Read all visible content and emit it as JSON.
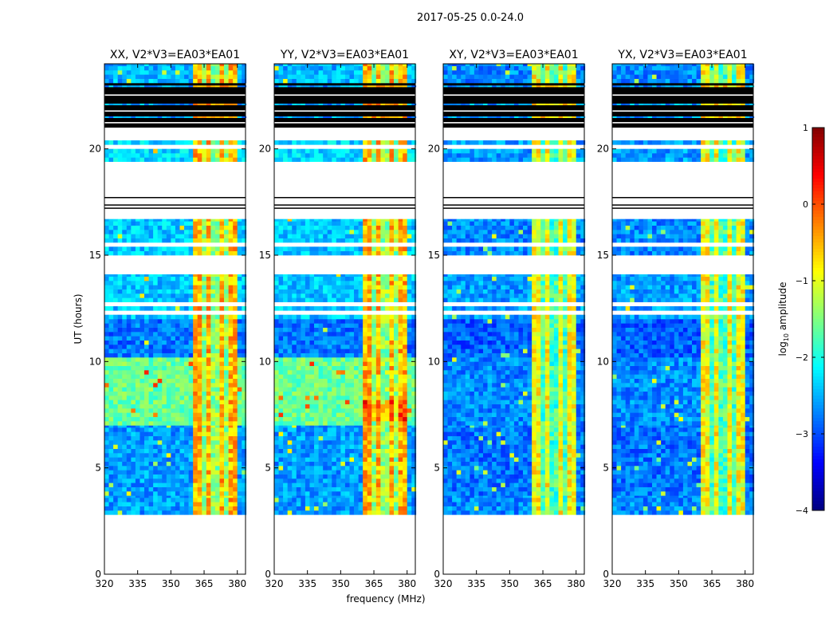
{
  "chart_data": {
    "type": "heatmap",
    "title": "2017-05-25 0.0-24.0",
    "xlabel": "frequency (MHz)",
    "ylabel": "UT (hours)",
    "xlim": [
      320,
      383.7
    ],
    "ylim": [
      0,
      24
    ],
    "xticks": [
      320,
      335,
      350,
      365,
      380
    ],
    "yticks": [
      0,
      5,
      10,
      15,
      20
    ],
    "panels": [
      {
        "title": "XX, V2*V3=EA03*EA01",
        "kind": "parallel"
      },
      {
        "title": "YY, V2*V3=EA03*EA01",
        "kind": "parallel"
      },
      {
        "title": "XY, V2*V3=EA03*EA01",
        "kind": "cross"
      },
      {
        "title": "YX, V2*V3=EA03*EA01",
        "kind": "cross"
      }
    ],
    "colorbar": {
      "label": "log10 amplitude",
      "label_main": "log",
      "label_sub": "10",
      "label_rest": " amplitude",
      "range": [
        -4,
        1
      ],
      "ticks": [
        1,
        0,
        -1,
        -2,
        -3,
        -4
      ],
      "colormap": "jet"
    },
    "time_segments": [
      {
        "from": 0.0,
        "to": 2.8,
        "state": "no-data"
      },
      {
        "from": 2.8,
        "to": 3.7,
        "state": "data",
        "parallel": -2.6,
        "cross": -2.7
      },
      {
        "from": 3.7,
        "to": 7.0,
        "state": "data",
        "parallel": -2.6,
        "cross": -2.8
      },
      {
        "from": 7.0,
        "to": 10.2,
        "state": "data",
        "parallel": -1.6,
        "cross": -2.7
      },
      {
        "from": 10.2,
        "to": 12.0,
        "state": "data",
        "parallel": -2.8,
        "cross": -2.9
      },
      {
        "from": 12.0,
        "to": 14.1,
        "state": "data",
        "parallel": -2.4,
        "cross": -2.6
      },
      {
        "from": 14.1,
        "to": 15.0,
        "state": "no-data"
      },
      {
        "from": 15.0,
        "to": 16.7,
        "state": "data",
        "parallel": -2.4,
        "cross": -2.7
      },
      {
        "from": 16.7,
        "to": 19.4,
        "state": "no-data"
      },
      {
        "from": 19.4,
        "to": 20.4,
        "state": "data",
        "parallel": -2.3,
        "cross": -2.6
      },
      {
        "from": 20.4,
        "to": 21.0,
        "state": "no-data"
      },
      {
        "from": 21.0,
        "to": 23.1,
        "state": "flagged"
      },
      {
        "from": 23.1,
        "to": 24.0,
        "state": "data",
        "parallel": -2.5,
        "cross": -2.7
      }
    ],
    "rfi_band": {
      "from_mhz": 360,
      "to_mhz": 380,
      "parallel": -0.5,
      "cross": -0.9,
      "gaps_mhz": [
        365,
        370,
        375
      ]
    }
  }
}
